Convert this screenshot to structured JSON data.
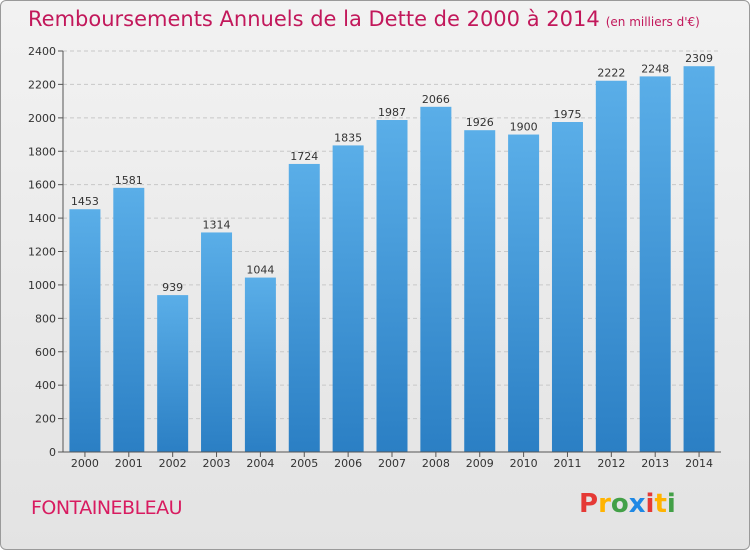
{
  "chart_data": {
    "type": "bar",
    "title": "Remboursements Annuels de la Dette de 2000 à 2014",
    "subtitle": "(en milliers d'€)",
    "categories": [
      "2000",
      "2001",
      "2002",
      "2003",
      "2004",
      "2005",
      "2006",
      "2007",
      "2008",
      "2009",
      "2010",
      "2011",
      "2012",
      "2013",
      "2014"
    ],
    "values": [
      1453,
      1581,
      939,
      1314,
      1044,
      1724,
      1835,
      1987,
      2066,
      1926,
      1900,
      1975,
      2222,
      2248,
      2309
    ],
    "ylim": [
      0,
      2400
    ],
    "yticks": [
      0,
      200,
      400,
      600,
      800,
      1000,
      1200,
      1400,
      1600,
      1800,
      2000,
      2200,
      2400
    ],
    "grid": "horizontal-dashed",
    "xlabel": "",
    "ylabel": ""
  },
  "commune": "FONTAINEBLEAU",
  "logo": {
    "text": "Proxiti",
    "letters": [
      {
        "ch": "P",
        "color": "#e53935"
      },
      {
        "ch": "r",
        "color": "#ffb300"
      },
      {
        "ch": "o",
        "color": "#43a047"
      },
      {
        "ch": "x",
        "color": "#1e88e5"
      },
      {
        "ch": "i",
        "color": "#e53935"
      },
      {
        "ch": "t",
        "color": "#ffb300"
      },
      {
        "ch": "i",
        "color": "#43a047"
      }
    ]
  },
  "colors": {
    "title": "#c2185b",
    "bar_light": "#5aaee8",
    "bar_dark": "#2b7fc4",
    "grid": "#c8c8c8",
    "axis": "#555555"
  }
}
